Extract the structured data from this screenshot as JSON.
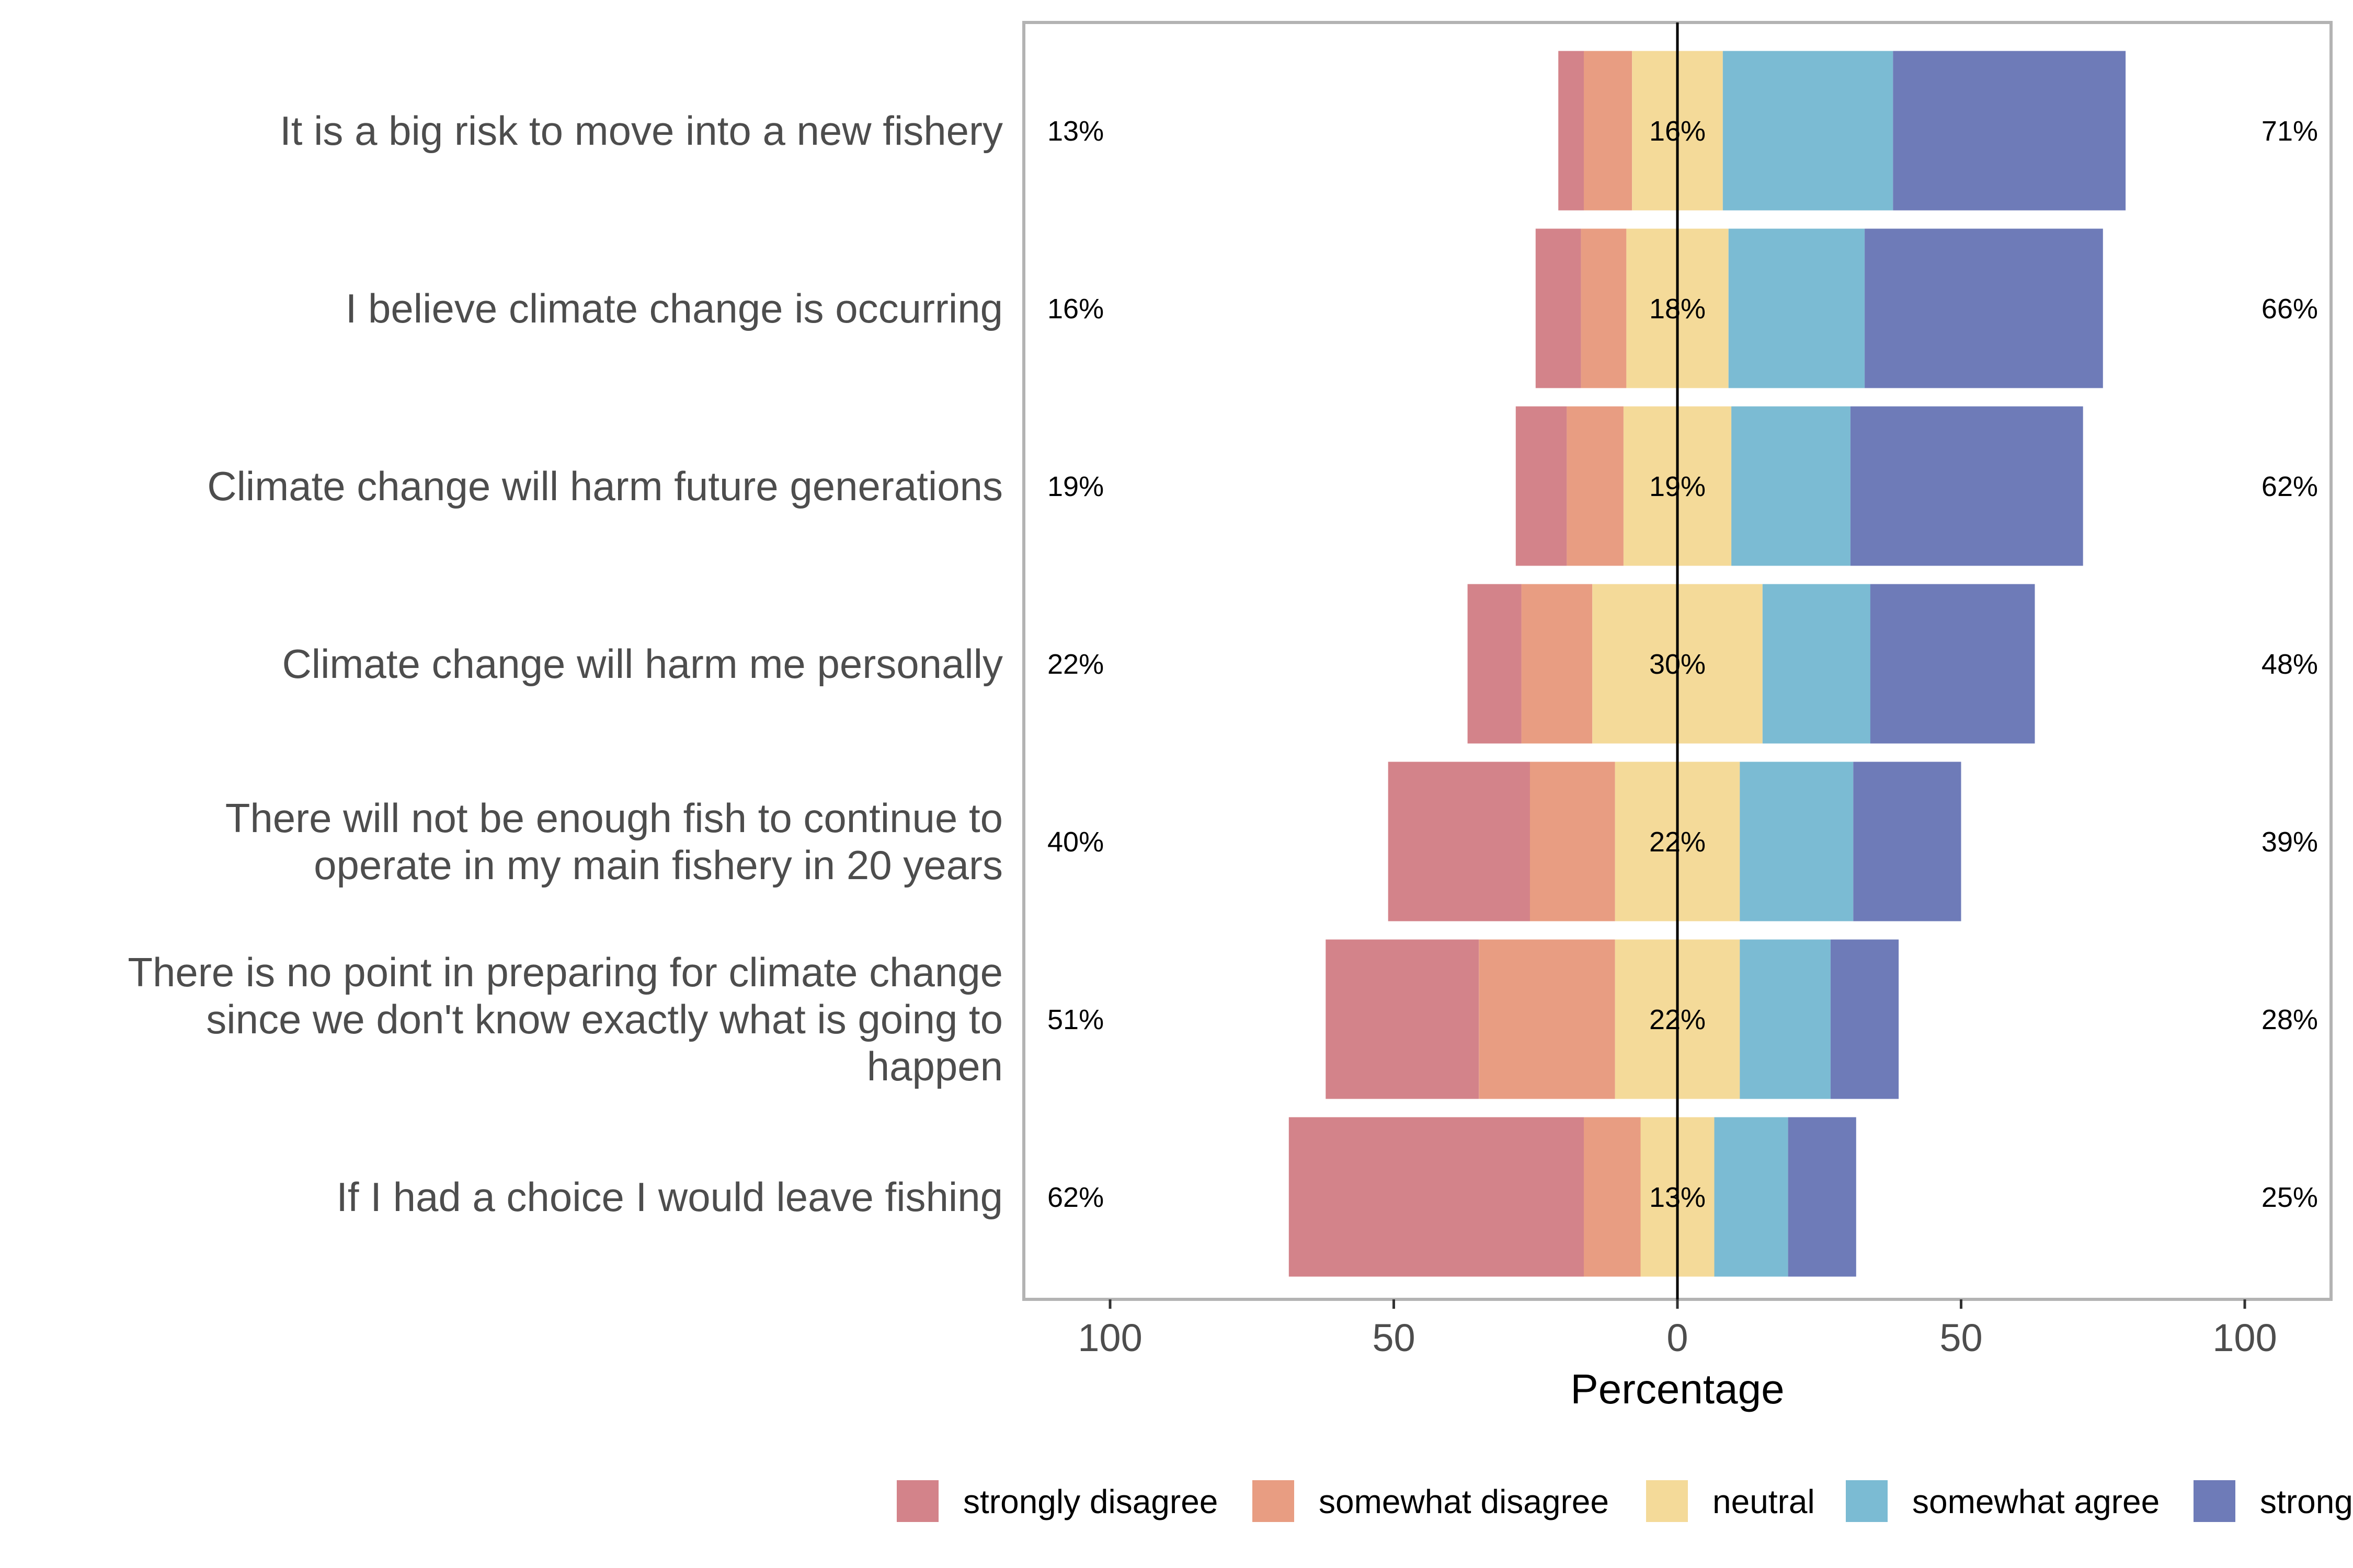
{
  "chart_data": {
    "type": "bar",
    "orientation": "horizontal",
    "stacked": "diverging",
    "xlabel": "Percentage",
    "xlim": [
      -100,
      100
    ],
    "xticks": [
      -100,
      -50,
      0,
      50,
      100
    ],
    "xtick_labels": [
      "100",
      "50",
      "0",
      "50",
      "100"
    ],
    "grid": false,
    "legend_position": "bottom",
    "series_colors": [
      "#d3838a",
      "#e89d82",
      "#f4da99",
      "#7bbbd3",
      "#6e7bb8"
    ],
    "legend_labels": [
      "strongly disagree",
      "somewhat disagree",
      "neutral",
      "somewhat agree",
      "strong"
    ],
    "categories": [
      "It is a big risk to move into a new fishery",
      "I believe climate change is occurring",
      "Climate change will harm future generations",
      "Climate change will harm me personally",
      "There will not be enough fish to continue to operate in my main fishery in 20 years",
      "There is no point in preparing for climate change since we don't know exactly what is going to happen",
      "If I had a choice I would leave fishing"
    ],
    "category_lines": [
      [
        "It is a big risk to move into a new fishery"
      ],
      [
        "I believe climate change is occurring"
      ],
      [
        "Climate change will harm future generations"
      ],
      [
        "Climate change will harm me personally"
      ],
      [
        "There will not be enough fish to continue to",
        "operate in my main fishery in 20 years"
      ],
      [
        "There is no point in preparing for climate change",
        "since we don't know exactly what is going to",
        "happen"
      ],
      [
        "If I had a choice I would leave fishing"
      ]
    ],
    "values": [
      [
        4.5,
        8.5,
        16,
        30,
        41
      ],
      [
        8,
        8,
        18,
        24,
        42
      ],
      [
        9,
        10,
        19,
        21,
        41
      ],
      [
        9.5,
        12.5,
        30,
        19,
        29
      ],
      [
        25,
        15,
        22,
        20,
        19
      ],
      [
        27,
        24,
        22,
        16,
        12
      ],
      [
        52,
        10,
        13,
        13,
        12
      ]
    ],
    "left_labels": [
      "13%",
      "16%",
      "19%",
      "22%",
      "40%",
      "51%",
      "62%"
    ],
    "center_labels": [
      "16%",
      "18%",
      "19%",
      "30%",
      "22%",
      "22%",
      "13%"
    ],
    "right_labels": [
      "71%",
      "66%",
      "62%",
      "48%",
      "39%",
      "28%",
      "25%"
    ]
  }
}
